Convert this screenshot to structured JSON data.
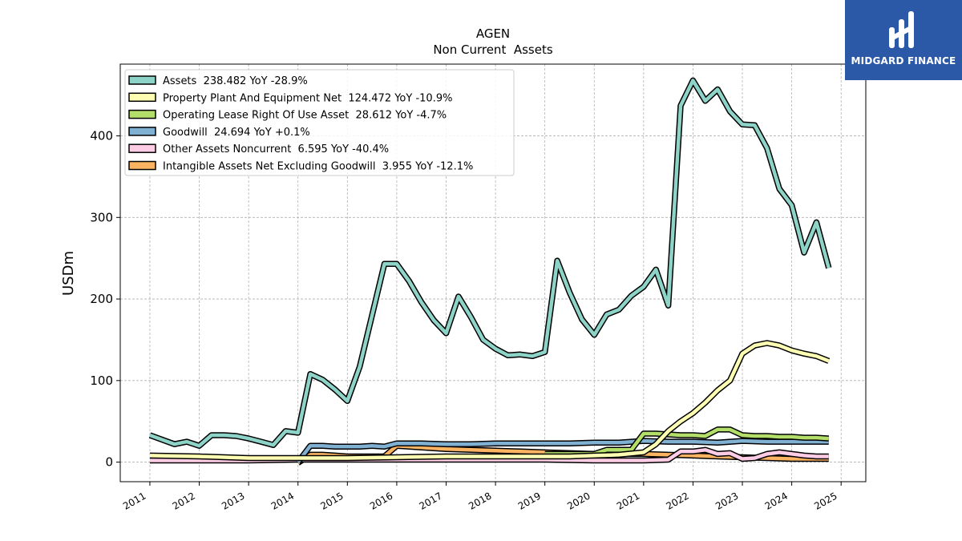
{
  "brand": {
    "name": "MIDGARD FINANCE",
    "color": "#2b59a8"
  },
  "chart_data": {
    "type": "line",
    "title": "AGEN",
    "subtitle": "Non Current  Assets",
    "xlabel": "",
    "ylabel": "USDm",
    "xlim": [
      2010.4,
      2025.5
    ],
    "ylim": [
      -24,
      488
    ],
    "x_ticks": [
      2011,
      2012,
      2013,
      2014,
      2015,
      2016,
      2017,
      2018,
      2019,
      2020,
      2021,
      2022,
      2023,
      2024,
      2025
    ],
    "y_ticks": [
      0,
      100,
      200,
      300,
      400
    ],
    "grid": true,
    "legend_position": "top-left",
    "series": [
      {
        "name": "Assets",
        "label": "Assets  238.482 YoY -28.9%",
        "color": "#8dd3c7",
        "x": [
          2011.0,
          2011.5,
          2011.75,
          2012.0,
          2012.25,
          2012.5,
          2012.75,
          2013.0,
          2013.25,
          2013.5,
          2013.75,
          2014.0,
          2014.25,
          2014.5,
          2014.75,
          2015.0,
          2015.25,
          2015.5,
          2015.75,
          2016.0,
          2016.25,
          2016.5,
          2016.75,
          2017.0,
          2017.25,
          2017.5,
          2017.75,
          2018.0,
          2018.25,
          2018.5,
          2018.75,
          2019.0,
          2019.25,
          2019.5,
          2019.75,
          2020.0,
          2020.25,
          2020.5,
          2020.75,
          2021.0,
          2021.25,
          2021.5,
          2021.75,
          2022.0,
          2022.25,
          2022.5,
          2022.75,
          2023.0,
          2023.25,
          2023.5,
          2023.75,
          2024.0,
          2024.25,
          2024.5,
          2024.75
        ],
        "y": [
          33,
          22,
          25,
          20,
          33,
          33,
          32,
          29,
          25,
          21,
          38,
          36,
          108,
          101,
          89,
          75,
          117,
          180,
          243,
          243,
          222,
          196,
          174,
          158,
          203,
          178,
          150,
          139,
          131,
          132,
          130,
          135,
          247,
          208,
          175,
          156,
          181,
          187,
          204,
          215,
          236,
          192,
          437,
          468,
          443,
          457,
          430,
          414,
          413,
          385,
          335,
          315,
          257,
          294,
          238
        ]
      },
      {
        "name": "Property Plant And Equipment Net",
        "label": "Property Plant And Equipment Net  124.472 YoY -10.9%",
        "color": "#ffffb3",
        "x": [
          2011.0,
          2012.0,
          2013.0,
          2014.0,
          2015.0,
          2016.0,
          2017.0,
          2018.0,
          2019.0,
          2019.5,
          2020.0,
          2020.5,
          2021.0,
          2021.25,
          2021.5,
          2021.75,
          2022.0,
          2022.25,
          2022.5,
          2022.75,
          2023.0,
          2023.25,
          2023.5,
          2023.75,
          2024.0,
          2024.25,
          2024.5,
          2024.75
        ],
        "y": [
          8,
          7,
          5,
          5,
          5,
          6,
          7,
          7,
          7,
          7,
          8,
          9,
          12,
          22,
          38,
          50,
          60,
          73,
          88,
          100,
          133,
          143,
          146,
          143,
          137,
          133,
          130,
          124
        ]
      },
      {
        "name": "Operating Lease Right Of Use Asset",
        "label": "Operating Lease Right Of Use Asset  28.612 YoY -4.7%",
        "color": "#b3de69",
        "x": [
          2019.0,
          2019.25,
          2019.5,
          2019.75,
          2020.0,
          2020.25,
          2020.5,
          2020.75,
          2021.0,
          2021.25,
          2021.5,
          2021.75,
          2022.0,
          2022.25,
          2022.5,
          2022.75,
          2023.0,
          2023.25,
          2023.5,
          2023.75,
          2024.0,
          2024.25,
          2024.5,
          2024.75
        ],
        "y": [
          10,
          10,
          10,
          10,
          10,
          15,
          15,
          15,
          35,
          35,
          34,
          33,
          33,
          32,
          40,
          40,
          33,
          32,
          32,
          31,
          31,
          30,
          30,
          29
        ]
      },
      {
        "name": "Goodwill",
        "label": "Goodwill  24.694 YoY +0.1%",
        "color": "#80b1d3",
        "x": [
          2014.0,
          2014.25,
          2014.5,
          2014.75,
          2015.0,
          2015.25,
          2015.5,
          2015.75,
          2016.0,
          2016.5,
          2017.0,
          2017.5,
          2018.0,
          2018.5,
          2019.0,
          2019.5,
          2020.0,
          2020.5,
          2021.0,
          2021.5,
          2022.0,
          2022.5,
          2023.0,
          2023.5,
          2024.0,
          2024.5,
          2024.75
        ],
        "y": [
          0,
          20,
          20,
          19,
          19,
          19,
          20,
          19,
          23,
          23,
          22,
          22,
          23,
          23,
          23,
          23,
          24,
          24,
          26,
          25,
          25,
          24,
          26,
          25,
          25,
          25,
          25
        ]
      },
      {
        "name": "Other Assets Noncurrent",
        "label": "Other Assets Noncurrent  6.595 YoY -40.4%",
        "color": "#ffcce6",
        "x": [
          2011.0,
          2012.0,
          2013.0,
          2014.0,
          2015.0,
          2016.0,
          2017.0,
          2018.0,
          2019.0,
          2020.0,
          2020.75,
          2021.0,
          2021.5,
          2021.75,
          2022.0,
          2022.25,
          2022.5,
          2022.75,
          2023.0,
          2023.25,
          2023.5,
          2023.75,
          2024.0,
          2024.25,
          2024.5,
          2024.75
        ],
        "y": [
          2,
          2,
          2,
          3,
          3,
          3,
          3,
          3,
          3,
          2,
          2,
          2,
          3,
          13,
          13,
          15,
          10,
          11,
          4,
          5,
          10,
          12,
          10,
          8,
          7,
          7
        ]
      },
      {
        "name": "Intangible Assets Net Excluding Goodwill",
        "label": "Intangible Assets Net Excluding Goodwill  3.955 YoY -12.1%",
        "color": "#fdb462",
        "x": [
          2014.0,
          2014.25,
          2014.5,
          2014.75,
          2015.0,
          2015.5,
          2015.75,
          2016.0,
          2016.5,
          2017.0,
          2017.5,
          2018.0,
          2018.5,
          2019.0,
          2019.5,
          2020.0,
          2020.5,
          2021.0,
          2021.5,
          2022.0,
          2022.5,
          2023.0,
          2023.5,
          2024.0,
          2024.5,
          2024.75
        ],
        "y": [
          -1,
          9,
          9,
          8,
          7,
          7,
          7,
          20,
          18,
          16,
          15,
          14,
          13,
          12,
          11,
          10,
          10,
          10,
          9,
          8,
          7,
          6,
          5,
          4,
          4,
          4
        ]
      }
    ]
  }
}
